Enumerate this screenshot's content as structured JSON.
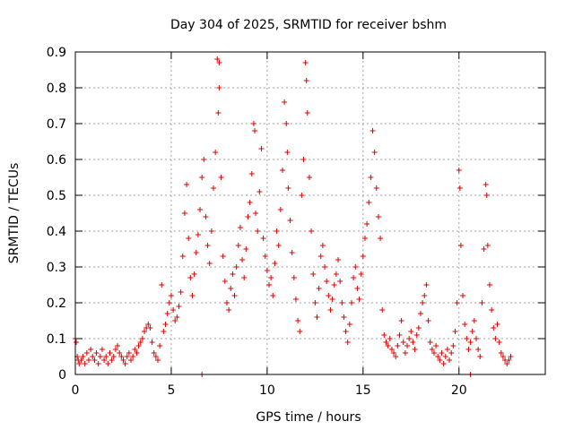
{
  "chart_data": {
    "type": "scatter",
    "title": "Day 304 of 2025, SRMTID for receiver bshm",
    "xlabel": "GPS time / hours",
    "ylabel": "SRMTID / TECUs",
    "xlim": [
      0,
      24.5
    ],
    "ylim": [
      0,
      0.9
    ],
    "x_ticks": [
      0,
      5,
      10,
      15,
      20
    ],
    "x_tick_labels": [
      "0",
      "5",
      "10",
      "15",
      "20"
    ],
    "y_ticks": [
      0,
      0.1,
      0.2,
      0.3,
      0.4,
      0.5,
      0.6,
      0.7,
      0.8,
      0.9
    ],
    "y_tick_labels": [
      "0",
      "0.1",
      "0.2",
      "0.3",
      "0.4",
      "0.5",
      "0.6",
      "0.7",
      "0.8",
      "0.9"
    ],
    "grid": true,
    "marker": "plus",
    "series": [
      {
        "name": "SRMTID",
        "color": "#dd0000",
        "points": [
          [
            0.0,
            0.1
          ],
          [
            0.05,
            0.09
          ],
          [
            0.1,
            0.05
          ],
          [
            0.15,
            0.04
          ],
          [
            0.2,
            0.03
          ],
          [
            0.3,
            0.04
          ],
          [
            0.4,
            0.05
          ],
          [
            0.5,
            0.03
          ],
          [
            0.6,
            0.06
          ],
          [
            0.7,
            0.04
          ],
          [
            0.8,
            0.07
          ],
          [
            0.9,
            0.05
          ],
          [
            1.0,
            0.04
          ],
          [
            1.1,
            0.06
          ],
          [
            1.2,
            0.03
          ],
          [
            1.3,
            0.05
          ],
          [
            1.4,
            0.07
          ],
          [
            1.5,
            0.04
          ],
          [
            1.6,
            0.05
          ],
          [
            1.7,
            0.03
          ],
          [
            1.8,
            0.06
          ],
          [
            1.9,
            0.04
          ],
          [
            2.0,
            0.05
          ],
          [
            2.1,
            0.07
          ],
          [
            2.2,
            0.08
          ],
          [
            2.3,
            0.06
          ],
          [
            2.4,
            0.05
          ],
          [
            2.5,
            0.04
          ],
          [
            2.6,
            0.03
          ],
          [
            2.7,
            0.05
          ],
          [
            2.8,
            0.06
          ],
          [
            2.9,
            0.04
          ],
          [
            3.0,
            0.05
          ],
          [
            3.1,
            0.07
          ],
          [
            3.2,
            0.06
          ],
          [
            3.3,
            0.08
          ],
          [
            3.4,
            0.09
          ],
          [
            3.5,
            0.1
          ],
          [
            3.6,
            0.12
          ],
          [
            3.7,
            0.13
          ],
          [
            3.8,
            0.14
          ],
          [
            3.9,
            0.13
          ],
          [
            4.0,
            0.09
          ],
          [
            4.1,
            0.06
          ],
          [
            4.2,
            0.05
          ],
          [
            4.3,
            0.04
          ],
          [
            4.4,
            0.08
          ],
          [
            4.5,
            0.25
          ],
          [
            4.6,
            0.12
          ],
          [
            4.7,
            0.14
          ],
          [
            4.8,
            0.17
          ],
          [
            4.9,
            0.2
          ],
          [
            5.0,
            0.22
          ],
          [
            5.1,
            0.18
          ],
          [
            5.2,
            0.15
          ],
          [
            5.3,
            0.16
          ],
          [
            5.4,
            0.19
          ],
          [
            5.5,
            0.23
          ],
          [
            5.6,
            0.33
          ],
          [
            5.7,
            0.45
          ],
          [
            5.8,
            0.53
          ],
          [
            5.9,
            0.38
          ],
          [
            6.0,
            0.27
          ],
          [
            6.1,
            0.22
          ],
          [
            6.2,
            0.28
          ],
          [
            6.3,
            0.34
          ],
          [
            6.4,
            0.39
          ],
          [
            6.5,
            0.46
          ],
          [
            6.6,
            0.55
          ],
          [
            6.7,
            0.6
          ],
          [
            6.8,
            0.44
          ],
          [
            6.9,
            0.36
          ],
          [
            7.0,
            0.31
          ],
          [
            7.1,
            0.4
          ],
          [
            7.2,
            0.52
          ],
          [
            7.3,
            0.62
          ],
          [
            7.4,
            0.88
          ],
          [
            7.5,
            0.87
          ],
          [
            7.45,
            0.73
          ],
          [
            7.5,
            0.8
          ],
          [
            7.6,
            0.55
          ],
          [
            7.7,
            0.33
          ],
          [
            7.8,
            0.26
          ],
          [
            7.9,
            0.2
          ],
          [
            8.0,
            0.18
          ],
          [
            8.1,
            0.24
          ],
          [
            8.2,
            0.28
          ],
          [
            8.3,
            0.22
          ],
          [
            8.4,
            0.3
          ],
          [
            8.5,
            0.36
          ],
          [
            8.6,
            0.41
          ],
          [
            8.7,
            0.32
          ],
          [
            8.8,
            0.27
          ],
          [
            8.9,
            0.35
          ],
          [
            9.0,
            0.44
          ],
          [
            9.1,
            0.48
          ],
          [
            9.2,
            0.56
          ],
          [
            9.3,
            0.7
          ],
          [
            9.35,
            0.68
          ],
          [
            9.4,
            0.45
          ],
          [
            9.5,
            0.4
          ],
          [
            9.6,
            0.51
          ],
          [
            9.7,
            0.63
          ],
          [
            9.8,
            0.38
          ],
          [
            9.9,
            0.33
          ],
          [
            10.0,
            0.29
          ],
          [
            10.1,
            0.25
          ],
          [
            10.2,
            0.27
          ],
          [
            10.3,
            0.22
          ],
          [
            10.4,
            0.31
          ],
          [
            10.5,
            0.4
          ],
          [
            10.6,
            0.36
          ],
          [
            10.7,
            0.46
          ],
          [
            10.8,
            0.57
          ],
          [
            10.9,
            0.76
          ],
          [
            11.0,
            0.7
          ],
          [
            11.05,
            0.62
          ],
          [
            11.1,
            0.52
          ],
          [
            11.2,
            0.43
          ],
          [
            11.3,
            0.34
          ],
          [
            11.4,
            0.27
          ],
          [
            11.5,
            0.21
          ],
          [
            11.6,
            0.15
          ],
          [
            11.7,
            0.12
          ],
          [
            11.8,
            0.5
          ],
          [
            11.9,
            0.6
          ],
          [
            12.0,
            0.87
          ],
          [
            12.05,
            0.82
          ],
          [
            12.1,
            0.73
          ],
          [
            12.2,
            0.55
          ],
          [
            12.3,
            0.4
          ],
          [
            12.4,
            0.28
          ],
          [
            12.5,
            0.2
          ],
          [
            12.6,
            0.16
          ],
          [
            12.7,
            0.24
          ],
          [
            12.8,
            0.33
          ],
          [
            12.9,
            0.36
          ],
          [
            13.0,
            0.3
          ],
          [
            13.1,
            0.26
          ],
          [
            13.2,
            0.22
          ],
          [
            13.3,
            0.18
          ],
          [
            13.4,
            0.21
          ],
          [
            13.5,
            0.25
          ],
          [
            13.6,
            0.28
          ],
          [
            13.7,
            0.32
          ],
          [
            13.8,
            0.26
          ],
          [
            13.9,
            0.2
          ],
          [
            14.0,
            0.16
          ],
          [
            14.1,
            0.12
          ],
          [
            14.2,
            0.09
          ],
          [
            14.3,
            0.14
          ],
          [
            14.4,
            0.2
          ],
          [
            14.5,
            0.27
          ],
          [
            14.6,
            0.3
          ],
          [
            14.7,
            0.24
          ],
          [
            14.8,
            0.21
          ],
          [
            14.9,
            0.28
          ],
          [
            15.0,
            0.33
          ],
          [
            15.1,
            0.38
          ],
          [
            15.2,
            0.42
          ],
          [
            15.3,
            0.48
          ],
          [
            15.4,
            0.55
          ],
          [
            15.5,
            0.68
          ],
          [
            15.6,
            0.62
          ],
          [
            15.7,
            0.52
          ],
          [
            15.8,
            0.44
          ],
          [
            15.9,
            0.38
          ],
          [
            16.0,
            0.18
          ],
          [
            16.1,
            0.11
          ],
          [
            16.2,
            0.09
          ],
          [
            16.3,
            0.08
          ],
          [
            16.4,
            0.1
          ],
          [
            16.5,
            0.07
          ],
          [
            16.6,
            0.06
          ],
          [
            16.7,
            0.05
          ],
          [
            16.8,
            0.08
          ],
          [
            16.9,
            0.11
          ],
          [
            17.0,
            0.15
          ],
          [
            17.1,
            0.09
          ],
          [
            17.2,
            0.06
          ],
          [
            17.3,
            0.08
          ],
          [
            17.4,
            0.1
          ],
          [
            17.5,
            0.12
          ],
          [
            17.6,
            0.09
          ],
          [
            17.7,
            0.07
          ],
          [
            17.8,
            0.11
          ],
          [
            17.9,
            0.13
          ],
          [
            18.0,
            0.17
          ],
          [
            18.1,
            0.2
          ],
          [
            18.2,
            0.22
          ],
          [
            18.3,
            0.25
          ],
          [
            18.4,
            0.15
          ],
          [
            18.5,
            0.09
          ],
          [
            18.6,
            0.07
          ],
          [
            18.7,
            0.06
          ],
          [
            18.8,
            0.08
          ],
          [
            18.9,
            0.05
          ],
          [
            19.0,
            0.04
          ],
          [
            19.1,
            0.06
          ],
          [
            19.2,
            0.03
          ],
          [
            19.3,
            0.05
          ],
          [
            19.4,
            0.07
          ],
          [
            19.5,
            0.04
          ],
          [
            19.6,
            0.06
          ],
          [
            19.7,
            0.08
          ],
          [
            19.8,
            0.12
          ],
          [
            19.9,
            0.2
          ],
          [
            20.0,
            0.57
          ],
          [
            20.05,
            0.52
          ],
          [
            20.1,
            0.36
          ],
          [
            20.2,
            0.22
          ],
          [
            20.3,
            0.14
          ],
          [
            20.4,
            0.1
          ],
          [
            20.5,
            0.07
          ],
          [
            20.6,
            0.09
          ],
          [
            20.7,
            0.12
          ],
          [
            20.8,
            0.15
          ],
          [
            20.9,
            0.1
          ],
          [
            21.0,
            0.07
          ],
          [
            21.1,
            0.05
          ],
          [
            21.2,
            0.2
          ],
          [
            21.3,
            0.35
          ],
          [
            21.4,
            0.53
          ],
          [
            21.45,
            0.5
          ],
          [
            21.5,
            0.36
          ],
          [
            21.6,
            0.25
          ],
          [
            21.7,
            0.18
          ],
          [
            21.8,
            0.13
          ],
          [
            21.9,
            0.1
          ],
          [
            22.0,
            0.14
          ],
          [
            22.1,
            0.09
          ],
          [
            22.2,
            0.06
          ],
          [
            22.3,
            0.05
          ],
          [
            22.4,
            0.04
          ],
          [
            22.5,
            0.03
          ],
          [
            22.6,
            0.04
          ],
          [
            22.7,
            0.05
          ],
          [
            20.6,
            0.0
          ],
          [
            6.6,
            0.0
          ]
        ]
      }
    ]
  }
}
